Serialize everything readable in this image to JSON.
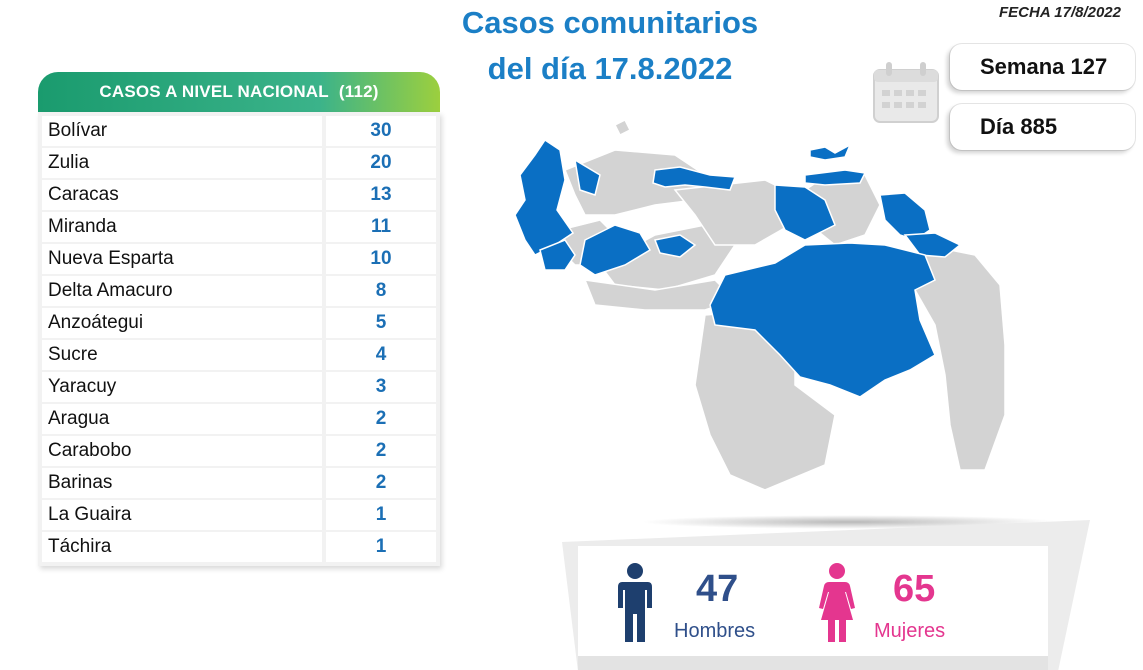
{
  "header": {
    "title_line1": "Casos comunitarios",
    "title_line2": "del día 17.8.2022",
    "fecha": "FECHA 17/8/2022",
    "semana": "Semana 127",
    "dia": "Día 885"
  },
  "table": {
    "title": "CASOS A NIVEL NACIONAL",
    "total": "(112)",
    "rows": [
      {
        "name": "Bolívar",
        "value": "30"
      },
      {
        "name": "Zulia",
        "value": "20"
      },
      {
        "name": "Caracas",
        "value": "13"
      },
      {
        "name": "Miranda",
        "value": "11"
      },
      {
        "name": "Nueva Esparta",
        "value": "10"
      },
      {
        "name": "Delta Amacuro",
        "value": "8"
      },
      {
        "name": "Anzoátegui",
        "value": "5"
      },
      {
        "name": "Sucre",
        "value": "4"
      },
      {
        "name": "Yaracuy",
        "value": "3"
      },
      {
        "name": "Aragua",
        "value": "2"
      },
      {
        "name": "Carabobo",
        "value": "2"
      },
      {
        "name": "Barinas",
        "value": "2"
      },
      {
        "name": "La Guaira",
        "value": "1"
      },
      {
        "name": "Táchira",
        "value": "1"
      }
    ]
  },
  "gender": {
    "men_count": "47",
    "men_label": "Hombres",
    "women_count": "65",
    "women_label": "Mujeres"
  },
  "colors": {
    "title_blue": "#1b7fc6",
    "highlight_state": "#0a6fc4",
    "other_state": "#d3d3d3",
    "men": "#2f4f8a",
    "women": "#e4368f",
    "header_green": "#1a9b6e"
  },
  "icons": {
    "calendar": "calendar-icon",
    "men": "man-icon",
    "women": "woman-icon"
  }
}
